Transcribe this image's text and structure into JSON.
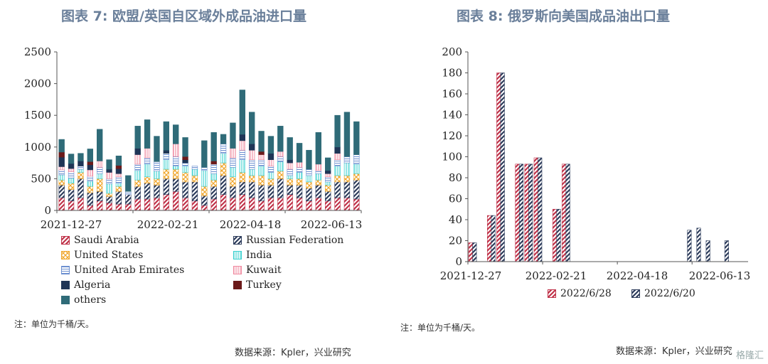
{
  "left": {
    "title": "图表 7:   欧盟/英国自区域外成品油进口量",
    "note": "注：单位为千桶/天。",
    "source": "数据来源：Kpler，兴业研究"
  },
  "right": {
    "title": "图表 8:   俄罗斯向美国成品油出口量",
    "note": "注：单位为千桶/天。",
    "source": "数据来源：Kpler，兴业研究"
  },
  "watermark": "格隆汇",
  "colors": {
    "saudi": "#c0334a",
    "russia": "#2e3d5c",
    "us": "#f0a830",
    "india": "#39d0cf",
    "uae": "#6c8fd0",
    "kuwait": "#f08aa0",
    "algeria": "#1f3556",
    "turkey": "#6b1a1a",
    "others": "#2f6b78"
  },
  "chart_data": [
    {
      "type": "bar",
      "stacked": true,
      "ylim": [
        0,
        2500
      ],
      "yticks": [
        0,
        500,
        1000,
        1500,
        2000,
        2500
      ],
      "xticks": [
        "2021-12-27",
        "2022-02-21",
        "2022-04-18",
        "2022-06-13"
      ],
      "legend_position": "bottom",
      "series": [
        {
          "name": "Saudi Arabia",
          "key": "saudi",
          "values": [
            200,
            150,
            200,
            80,
            150,
            120,
            100,
            100,
            180,
            180,
            200,
            250,
            300,
            200,
            150,
            80,
            180,
            250,
            200,
            250,
            200,
            150,
            200,
            200,
            250,
            200,
            150,
            200,
            150,
            200,
            200,
            180
          ]
        },
        {
          "name": "Russian Federation",
          "key": "russia",
          "values": [
            200,
            180,
            300,
            200,
            150,
            100,
            200,
            150,
            200,
            250,
            200,
            250,
            200,
            250,
            300,
            150,
            200,
            300,
            180,
            200,
            250,
            250,
            200,
            300,
            150,
            200,
            200,
            200,
            150,
            250,
            250,
            300
          ]
        },
        {
          "name": "United States",
          "key": "us",
          "values": [
            80,
            100,
            100,
            100,
            200,
            50,
            80,
            0,
            100,
            100,
            100,
            150,
            150,
            150,
            100,
            150,
            100,
            200,
            150,
            150,
            100,
            150,
            100,
            120,
            100,
            100,
            100,
            80,
            100,
            100,
            100,
            100
          ]
        },
        {
          "name": "India",
          "key": "india",
          "values": [
            80,
            80,
            50,
            80,
            80,
            150,
            50,
            0,
            150,
            200,
            120,
            150,
            50,
            100,
            100,
            250,
            100,
            150,
            150,
            200,
            100,
            150,
            100,
            150,
            50,
            100,
            100,
            100,
            50,
            150,
            200,
            150
          ]
        },
        {
          "name": "United Arab Emirates",
          "key": "uae",
          "values": [
            80,
            100,
            50,
            80,
            100,
            80,
            100,
            50,
            100,
            100,
            150,
            100,
            150,
            50,
            50,
            50,
            150,
            150,
            150,
            150,
            150,
            100,
            100,
            80,
            100,
            80,
            100,
            50,
            80,
            100,
            100,
            150
          ]
        },
        {
          "name": "Kuwait",
          "key": "kuwait",
          "values": [
            50,
            50,
            0,
            100,
            100,
            100,
            50,
            0,
            150,
            150,
            0,
            0,
            200,
            0,
            0,
            0,
            0,
            0,
            150,
            150,
            150,
            80,
            100,
            80,
            100,
            80,
            0,
            100,
            50,
            100,
            0,
            0
          ]
        },
        {
          "name": "Algeria",
          "key": "algeria",
          "values": [
            150,
            80,
            80,
            80,
            0,
            50,
            80,
            0,
            100,
            0,
            0,
            50,
            0,
            50,
            0,
            0,
            0,
            0,
            0,
            100,
            100,
            0,
            100,
            0,
            50,
            0,
            0,
            0,
            50,
            100,
            0,
            0
          ]
        },
        {
          "name": "Turkey",
          "key": "turkey",
          "values": [
            80,
            0,
            0,
            50,
            0,
            0,
            50,
            0,
            0,
            0,
            0,
            0,
            0,
            50,
            0,
            0,
            50,
            0,
            0,
            0,
            0,
            50,
            0,
            0,
            0,
            0,
            0,
            0,
            0,
            0,
            0,
            0
          ]
        },
        {
          "name": "others",
          "key": "others",
          "values": [
            200,
            150,
            120,
            200,
            500,
            150,
            150,
            250,
            350,
            450,
            400,
            450,
            300,
            300,
            0,
            420,
            450,
            150,
            400,
            700,
            500,
            320,
            270,
            400,
            350,
            300,
            300,
            500,
            200,
            500,
            700,
            520
          ]
        }
      ]
    },
    {
      "type": "bar",
      "ylim": [
        0,
        200
      ],
      "yticks": [
        0,
        20,
        40,
        60,
        80,
        100,
        120,
        140,
        160,
        180,
        200
      ],
      "xticks": [
        "2021-12-27",
        "2022-02-21",
        "2022-04-18",
        "2022-06-13"
      ],
      "legend_position": "bottom",
      "n_periods": 30,
      "series": [
        {
          "name": "2022/6/28",
          "key": "saudi",
          "bars": [
            {
              "i": 0,
              "v": 18
            },
            {
              "i": 2,
              "v": 44
            },
            {
              "i": 3,
              "v": 180
            },
            {
              "i": 5,
              "v": 93
            },
            {
              "i": 6,
              "v": 93
            },
            {
              "i": 7,
              "v": 99
            },
            {
              "i": 9,
              "v": 50
            },
            {
              "i": 10,
              "v": 93
            }
          ]
        },
        {
          "name": "2022/6/20",
          "key": "russia",
          "bars": [
            {
              "i": 0,
              "v": 18
            },
            {
              "i": 2,
              "v": 44
            },
            {
              "i": 3,
              "v": 180
            },
            {
              "i": 5,
              "v": 93
            },
            {
              "i": 6,
              "v": 93
            },
            {
              "i": 7,
              "v": 99
            },
            {
              "i": 9,
              "v": 50
            },
            {
              "i": 10,
              "v": 93
            },
            {
              "i": 23,
              "v": 30
            },
            {
              "i": 24,
              "v": 32
            },
            {
              "i": 25,
              "v": 20
            },
            {
              "i": 27,
              "v": 20
            }
          ]
        }
      ]
    }
  ]
}
